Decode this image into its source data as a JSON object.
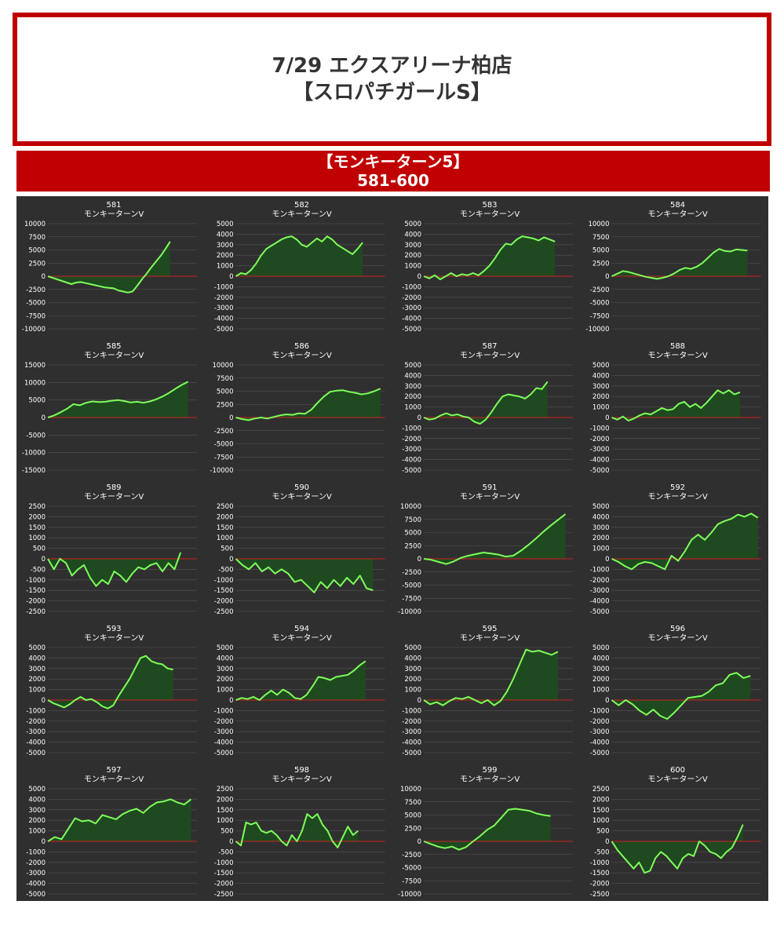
{
  "header": {
    "title_line1": "7/29 エクスアリーナ柏店",
    "title_line2": "【スロパチガールS】"
  },
  "banner": {
    "line1": "【モンキーターン5】",
    "line2": "581-600"
  },
  "colors": {
    "header_border": "#c00000",
    "banner_bg": "#c00000",
    "panel_bg": "#2f2f2f",
    "line": "#7dff5a",
    "fill": "#1f4a1f",
    "zero_line": "#cc2222",
    "grid": "#555555"
  },
  "chart_data": [
    {
      "type": "area",
      "title": "581",
      "subtitle": "モンキーターンV",
      "ylim": [
        -10000,
        10000
      ],
      "ticks": [
        10000,
        7500,
        5000,
        2500,
        0,
        -2500,
        -5000,
        -7500,
        -10000
      ],
      "values": [
        0,
        -300,
        -600,
        -900,
        -1200,
        -1500,
        -1200,
        -1100,
        -1300,
        -1500,
        -1700,
        -1900,
        -2100,
        -2200,
        -2300,
        -2700,
        -2900,
        -3100,
        -2900,
        -1800,
        -600,
        500,
        1700,
        2800,
        3900,
        5200,
        6600
      ]
    },
    {
      "type": "area",
      "title": "582",
      "subtitle": "モンキーターンV",
      "ylim": [
        -5000,
        5000
      ],
      "ticks": [
        5000,
        4000,
        3000,
        2000,
        1000,
        0,
        -1000,
        -2000,
        -3000,
        -4000,
        -5000
      ],
      "values": [
        0,
        300,
        200,
        600,
        1200,
        2000,
        2600,
        2900,
        3200,
        3500,
        3700,
        3800,
        3500,
        3000,
        2800,
        3200,
        3600,
        3300,
        3800,
        3500,
        3000,
        2700,
        2400,
        2100,
        2600,
        3200
      ]
    },
    {
      "type": "area",
      "title": "583",
      "subtitle": "モンキーターンV",
      "ylim": [
        -5000,
        5000
      ],
      "ticks": [
        5000,
        4000,
        3000,
        2000,
        1000,
        0,
        -1000,
        -2000,
        -3000,
        -4000,
        -5000
      ],
      "values": [
        0,
        -200,
        100,
        -300,
        0,
        300,
        0,
        200,
        100,
        300,
        100,
        500,
        1000,
        1700,
        2500,
        3100,
        3000,
        3500,
        3800,
        3700,
        3600,
        3400,
        3700,
        3500,
        3300
      ]
    },
    {
      "type": "area",
      "title": "584",
      "subtitle": "モンキーターンV",
      "ylim": [
        -10000,
        10000
      ],
      "ticks": [
        10000,
        7500,
        5000,
        2500,
        0,
        -2500,
        -5000,
        -7500,
        -10000
      ],
      "values": [
        0,
        500,
        1000,
        800,
        500,
        200,
        -100,
        -300,
        -500,
        -300,
        0,
        500,
        1200,
        1600,
        1400,
        1800,
        2500,
        3500,
        4500,
        5200,
        4800,
        4700,
        5100,
        5000,
        4900
      ]
    },
    {
      "type": "area",
      "title": "585",
      "subtitle": "モンキーターンV",
      "ylim": [
        -15000,
        15000
      ],
      "ticks": [
        15000,
        10000,
        5000,
        0,
        -5000,
        -10000,
        -15000
      ],
      "values": [
        0,
        600,
        1500,
        2500,
        3800,
        3500,
        4200,
        4600,
        4400,
        4500,
        4800,
        5000,
        4700,
        4300,
        4500,
        4200,
        4600,
        5200,
        6000,
        7000,
        8200,
        9300,
        10200
      ]
    },
    {
      "type": "area",
      "title": "586",
      "subtitle": "モンキーターンV",
      "ylim": [
        -10000,
        10000
      ],
      "ticks": [
        10000,
        7500,
        5000,
        2500,
        0,
        -2500,
        -5000,
        -7500,
        -10000
      ],
      "values": [
        0,
        -300,
        -500,
        -200,
        0,
        -200,
        100,
        400,
        600,
        500,
        800,
        700,
        1500,
        2800,
        4000,
        4900,
        5100,
        5200,
        4900,
        4700,
        4400,
        4600,
        5000,
        5500
      ]
    },
    {
      "type": "area",
      "title": "587",
      "subtitle": "モンキーターンV",
      "ylim": [
        -5000,
        5000
      ],
      "ticks": [
        5000,
        4000,
        3000,
        2000,
        1000,
        0,
        -1000,
        -2000,
        -3000,
        -4000,
        -5000
      ],
      "values": [
        0,
        -200,
        -100,
        200,
        400,
        200,
        300,
        100,
        0,
        -400,
        -600,
        -200,
        500,
        1300,
        2000,
        2200,
        2100,
        2000,
        1800,
        2200,
        2800,
        2700,
        3400
      ]
    },
    {
      "type": "area",
      "title": "588",
      "subtitle": "モンキーターンV",
      "ylim": [
        -5000,
        5000
      ],
      "ticks": [
        5000,
        4000,
        3000,
        2000,
        1000,
        0,
        -1000,
        -2000,
        -3000,
        -4000,
        -5000
      ],
      "values": [
        0,
        -200,
        100,
        -300,
        -100,
        200,
        400,
        300,
        600,
        900,
        700,
        800,
        1300,
        1500,
        1000,
        1300,
        900,
        1400,
        2000,
        2600,
        2300,
        2600,
        2200,
        2400
      ]
    },
    {
      "type": "area",
      "title": "589",
      "subtitle": "モンキーターンV",
      "ylim": [
        -2500,
        2500
      ],
      "ticks": [
        2500,
        2000,
        1500,
        1000,
        500,
        0,
        -500,
        -1000,
        -1500,
        -2000,
        -2500
      ],
      "values": [
        0,
        -500,
        0,
        -200,
        -800,
        -500,
        -300,
        -900,
        -1300,
        -1000,
        -1200,
        -600,
        -800,
        -1100,
        -700,
        -400,
        -500,
        -300,
        -200,
        -600,
        -200,
        -500,
        300
      ]
    },
    {
      "type": "area",
      "title": "590",
      "subtitle": "モンキーターンV",
      "ylim": [
        -2500,
        2500
      ],
      "ticks": [
        2500,
        2000,
        1500,
        1000,
        500,
        0,
        -500,
        -1000,
        -1500,
        -2000,
        -2500
      ],
      "values": [
        0,
        -300,
        -500,
        -200,
        -600,
        -400,
        -700,
        -500,
        -700,
        -1100,
        -1000,
        -1300,
        -1600,
        -1100,
        -1400,
        -1000,
        -1300,
        -900,
        -1200,
        -800,
        -1400,
        -1500
      ]
    },
    {
      "type": "area",
      "title": "591",
      "subtitle": "モンキーターンV",
      "ylim": [
        -10000,
        10000
      ],
      "ticks": [
        10000,
        7500,
        5000,
        2500,
        0,
        -2500,
        -5000,
        -7500,
        -10000
      ],
      "values": [
        0,
        -200,
        -600,
        -1000,
        -500,
        200,
        600,
        900,
        1200,
        1000,
        800,
        400,
        600,
        1500,
        2600,
        3800,
        5100,
        6300,
        7400,
        8500
      ]
    },
    {
      "type": "area",
      "title": "592",
      "subtitle": "モンキーターンV",
      "ylim": [
        -5000,
        5000
      ],
      "ticks": [
        5000,
        4000,
        3000,
        2000,
        1000,
        0,
        -1000,
        -2000,
        -3000,
        -4000,
        -5000
      ],
      "values": [
        0,
        -300,
        -700,
        -1000,
        -500,
        -300,
        -400,
        -700,
        -1000,
        300,
        -200,
        700,
        1800,
        2300,
        1800,
        2500,
        3300,
        3600,
        3800,
        4200,
        4000,
        4300,
        3900
      ]
    },
    {
      "type": "area",
      "title": "593",
      "subtitle": "モンキーターンV",
      "ylim": [
        -5000,
        5000
      ],
      "ticks": [
        5000,
        4000,
        3000,
        2000,
        1000,
        0,
        -1000,
        -2000,
        -3000,
        -4000,
        -5000
      ],
      "values": [
        0,
        -300,
        -500,
        -700,
        -400,
        0,
        300,
        0,
        100,
        -200,
        -600,
        -800,
        -500,
        400,
        1200,
        2000,
        3000,
        4000,
        4200,
        3700,
        3500,
        3400,
        3000,
        2900
      ]
    },
    {
      "type": "area",
      "title": "594",
      "subtitle": "モンキーターンV",
      "ylim": [
        -5000,
        5000
      ],
      "ticks": [
        5000,
        4000,
        3000,
        2000,
        1000,
        0,
        -1000,
        -2000,
        -3000,
        -4000,
        -5000
      ],
      "values": [
        0,
        200,
        100,
        300,
        0,
        500,
        900,
        500,
        1000,
        700,
        200,
        100,
        500,
        1300,
        2200,
        2100,
        1900,
        2200,
        2300,
        2400,
        2800,
        3300,
        3700
      ]
    },
    {
      "type": "area",
      "title": "595",
      "subtitle": "モンキーターンV",
      "ylim": [
        -5000,
        5000
      ],
      "ticks": [
        5000,
        4000,
        3000,
        2000,
        1000,
        0,
        -1000,
        -2000,
        -3000,
        -4000,
        -5000
      ],
      "values": [
        0,
        -400,
        -200,
        -500,
        -100,
        200,
        100,
        300,
        0,
        -300,
        0,
        -500,
        -100,
        800,
        2000,
        3400,
        4800,
        4600,
        4700,
        4500,
        4300,
        4600
      ]
    },
    {
      "type": "area",
      "title": "596",
      "subtitle": "モンキーターンV",
      "ylim": [
        -5000,
        5000
      ],
      "ticks": [
        5000,
        4000,
        3000,
        2000,
        1000,
        0,
        -1000,
        -2000,
        -3000,
        -4000,
        -5000
      ],
      "values": [
        0,
        -500,
        0,
        -400,
        -1000,
        -1400,
        -900,
        -1500,
        -1800,
        -1200,
        -500,
        200,
        300,
        400,
        800,
        1400,
        1600,
        2400,
        2600,
        2100,
        2300
      ]
    },
    {
      "type": "area",
      "title": "597",
      "subtitle": "モンキーターンV",
      "ylim": [
        -5000,
        5000
      ],
      "ticks": [
        5000,
        4000,
        3000,
        2000,
        1000,
        0,
        -1000,
        -2000,
        -3000,
        -4000,
        -5000
      ],
      "values": [
        0,
        400,
        200,
        1200,
        2200,
        1900,
        2000,
        1700,
        2500,
        2300,
        2100,
        2600,
        2900,
        3100,
        2700,
        3300,
        3700,
        3800,
        4000,
        3700,
        3500,
        4000
      ]
    },
    {
      "type": "area",
      "title": "598",
      "subtitle": "モンキーターンV",
      "ylim": [
        -2500,
        2500
      ],
      "ticks": [
        2500,
        2000,
        1500,
        1000,
        500,
        0,
        -500,
        -1000,
        -1500,
        -2000,
        -2500
      ],
      "values": [
        0,
        -200,
        900,
        800,
        900,
        500,
        400,
        500,
        300,
        0,
        -200,
        300,
        0,
        500,
        1300,
        1100,
        1300,
        800,
        500,
        0,
        -300,
        200,
        700,
        300,
        500
      ]
    },
    {
      "type": "area",
      "title": "599",
      "subtitle": "モンキーターンV",
      "ylim": [
        -10000,
        10000
      ],
      "ticks": [
        10000,
        7500,
        5000,
        2500,
        0,
        -2500,
        -5000,
        -7500,
        -10000
      ],
      "values": [
        0,
        -500,
        -1000,
        -1300,
        -1000,
        -1600,
        -1100,
        0,
        1000,
        2200,
        3000,
        4500,
        6000,
        6200,
        6000,
        5800,
        5300,
        5000,
        4800
      ]
    },
    {
      "type": "area",
      "title": "600",
      "subtitle": "モンキーターンV",
      "ylim": [
        -2500,
        2500
      ],
      "ticks": [
        2500,
        2000,
        1500,
        1000,
        500,
        0,
        -500,
        -1000,
        -1500,
        -2000,
        -2500
      ],
      "values": [
        0,
        -400,
        -700,
        -1000,
        -1300,
        -1000,
        -1500,
        -1400,
        -800,
        -500,
        -700,
        -1000,
        -1300,
        -800,
        -600,
        -700,
        0,
        -200,
        -500,
        -600,
        -800,
        -500,
        -300,
        200,
        800
      ]
    }
  ]
}
